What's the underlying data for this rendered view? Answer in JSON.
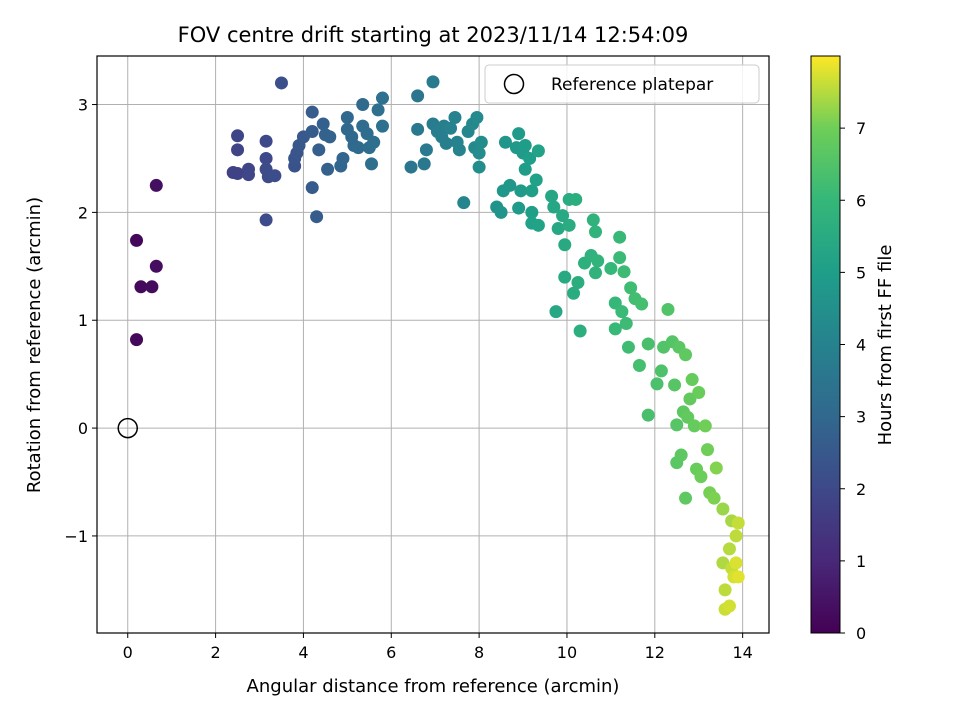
{
  "chart_data": {
    "type": "scatter",
    "title": "FOV centre drift starting at 2023/11/14 12:54:09",
    "xlabel": "Angular distance from reference (arcmin)",
    "ylabel": "Rotation from reference (arcmin)",
    "xlim": [
      -0.7,
      14.6
    ],
    "ylim": [
      -1.9,
      3.45
    ],
    "xticks": [
      0,
      2,
      4,
      6,
      8,
      10,
      12,
      14
    ],
    "yticks": [
      -1,
      0,
      1,
      2,
      3
    ],
    "xtick_labels": [
      "0",
      "2",
      "4",
      "6",
      "8",
      "10",
      "12",
      "14"
    ],
    "ytick_labels": [
      "−1",
      "0",
      "1",
      "2",
      "3"
    ],
    "grid": true,
    "legend": {
      "position": "top-right",
      "entries": [
        "Reference platepar"
      ]
    },
    "reference_point": {
      "x": 0,
      "y": 0,
      "label": "Reference platepar"
    },
    "colorbar": {
      "label": "Hours from first FF file",
      "colormap": "viridis",
      "range": [
        0,
        8
      ],
      "ticks": [
        0,
        1,
        2,
        3,
        4,
        5,
        6,
        7
      ],
      "tick_labels": [
        "0",
        "1",
        "2",
        "3",
        "4",
        "5",
        "6",
        "7"
      ]
    },
    "points": [
      {
        "x": 0.2,
        "y": 0.82,
        "c": 0.2
      },
      {
        "x": 0.3,
        "y": 1.31,
        "c": 0.2
      },
      {
        "x": 0.55,
        "y": 1.31,
        "c": 0.25
      },
      {
        "x": 0.2,
        "y": 1.74,
        "c": 0.15
      },
      {
        "x": 0.65,
        "y": 1.5,
        "c": 0.3
      },
      {
        "x": 0.65,
        "y": 2.25,
        "c": 0.35
      },
      {
        "x": 2.4,
        "y": 2.37,
        "c": 1.8
      },
      {
        "x": 2.5,
        "y": 2.36,
        "c": 1.8
      },
      {
        "x": 2.5,
        "y": 2.58,
        "c": 1.85
      },
      {
        "x": 2.5,
        "y": 2.71,
        "c": 1.9
      },
      {
        "x": 2.75,
        "y": 2.4,
        "c": 1.9
      },
      {
        "x": 2.75,
        "y": 2.35,
        "c": 1.95
      },
      {
        "x": 3.15,
        "y": 2.66,
        "c": 2.0
      },
      {
        "x": 3.15,
        "y": 2.5,
        "c": 2.0
      },
      {
        "x": 3.15,
        "y": 2.4,
        "c": 2.05
      },
      {
        "x": 3.2,
        "y": 2.33,
        "c": 2.05
      },
      {
        "x": 3.35,
        "y": 2.34,
        "c": 2.1
      },
      {
        "x": 3.15,
        "y": 1.93,
        "c": 2.1
      },
      {
        "x": 3.5,
        "y": 3.2,
        "c": 2.2
      },
      {
        "x": 3.8,
        "y": 2.43,
        "c": 2.3
      },
      {
        "x": 3.8,
        "y": 2.5,
        "c": 2.35
      },
      {
        "x": 3.85,
        "y": 2.55,
        "c": 2.4
      },
      {
        "x": 3.9,
        "y": 2.62,
        "c": 2.45
      },
      {
        "x": 4.0,
        "y": 2.7,
        "c": 2.5
      },
      {
        "x": 4.2,
        "y": 2.75,
        "c": 2.6
      },
      {
        "x": 4.2,
        "y": 2.93,
        "c": 2.65
      },
      {
        "x": 4.2,
        "y": 2.23,
        "c": 2.6
      },
      {
        "x": 4.3,
        "y": 1.96,
        "c": 2.6
      },
      {
        "x": 4.35,
        "y": 2.58,
        "c": 2.7
      },
      {
        "x": 4.45,
        "y": 2.82,
        "c": 2.75
      },
      {
        "x": 4.5,
        "y": 2.72,
        "c": 2.8
      },
      {
        "x": 4.6,
        "y": 2.7,
        "c": 2.85
      },
      {
        "x": 4.55,
        "y": 2.4,
        "c": 2.8
      },
      {
        "x": 4.85,
        "y": 2.43,
        "c": 2.9
      },
      {
        "x": 4.9,
        "y": 2.5,
        "c": 2.95
      },
      {
        "x": 5.0,
        "y": 2.88,
        "c": 3.0
      },
      {
        "x": 5.0,
        "y": 2.77,
        "c": 3.0
      },
      {
        "x": 5.1,
        "y": 2.7,
        "c": 3.05
      },
      {
        "x": 5.15,
        "y": 2.62,
        "c": 3.05
      },
      {
        "x": 5.25,
        "y": 2.6,
        "c": 3.1
      },
      {
        "x": 5.35,
        "y": 3.0,
        "c": 3.1
      },
      {
        "x": 5.35,
        "y": 2.8,
        "c": 3.15
      },
      {
        "x": 5.45,
        "y": 2.73,
        "c": 3.2
      },
      {
        "x": 5.5,
        "y": 2.6,
        "c": 3.2
      },
      {
        "x": 5.55,
        "y": 2.45,
        "c": 3.25
      },
      {
        "x": 5.6,
        "y": 2.65,
        "c": 3.25
      },
      {
        "x": 5.7,
        "y": 2.95,
        "c": 3.3
      },
      {
        "x": 5.8,
        "y": 3.06,
        "c": 3.35
      },
      {
        "x": 5.8,
        "y": 2.8,
        "c": 3.35
      },
      {
        "x": 6.45,
        "y": 2.42,
        "c": 3.5
      },
      {
        "x": 6.6,
        "y": 3.08,
        "c": 3.55
      },
      {
        "x": 6.6,
        "y": 2.77,
        "c": 3.6
      },
      {
        "x": 6.8,
        "y": 2.58,
        "c": 3.65
      },
      {
        "x": 6.75,
        "y": 2.45,
        "c": 3.6
      },
      {
        "x": 6.95,
        "y": 3.21,
        "c": 3.7
      },
      {
        "x": 6.95,
        "y": 2.82,
        "c": 3.75
      },
      {
        "x": 7.05,
        "y": 2.75,
        "c": 3.8
      },
      {
        "x": 7.15,
        "y": 2.7,
        "c": 3.85
      },
      {
        "x": 7.2,
        "y": 2.8,
        "c": 3.9
      },
      {
        "x": 7.25,
        "y": 2.64,
        "c": 3.9
      },
      {
        "x": 7.35,
        "y": 2.78,
        "c": 3.95
      },
      {
        "x": 7.45,
        "y": 2.88,
        "c": 4.0
      },
      {
        "x": 7.5,
        "y": 2.65,
        "c": 4.0
      },
      {
        "x": 7.55,
        "y": 2.58,
        "c": 4.05
      },
      {
        "x": 7.65,
        "y": 2.09,
        "c": 4.1
      },
      {
        "x": 7.75,
        "y": 2.75,
        "c": 4.15
      },
      {
        "x": 7.85,
        "y": 2.82,
        "c": 4.2
      },
      {
        "x": 7.9,
        "y": 2.6,
        "c": 4.25
      },
      {
        "x": 7.95,
        "y": 2.88,
        "c": 4.3
      },
      {
        "x": 8.0,
        "y": 2.55,
        "c": 4.35
      },
      {
        "x": 8.0,
        "y": 2.42,
        "c": 4.4
      },
      {
        "x": 8.05,
        "y": 2.65,
        "c": 4.4
      },
      {
        "x": 8.4,
        "y": 2.05,
        "c": 4.6
      },
      {
        "x": 8.5,
        "y": 2.0,
        "c": 4.65
      },
      {
        "x": 8.55,
        "y": 2.2,
        "c": 4.7
      },
      {
        "x": 8.6,
        "y": 2.65,
        "c": 4.7
      },
      {
        "x": 8.7,
        "y": 2.25,
        "c": 4.75
      },
      {
        "x": 8.85,
        "y": 2.6,
        "c": 4.8
      },
      {
        "x": 8.9,
        "y": 2.73,
        "c": 4.85
      },
      {
        "x": 8.9,
        "y": 2.04,
        "c": 4.85
      },
      {
        "x": 8.95,
        "y": 2.2,
        "c": 4.9
      },
      {
        "x": 9.0,
        "y": 2.55,
        "c": 4.9
      },
      {
        "x": 9.05,
        "y": 2.62,
        "c": 4.95
      },
      {
        "x": 9.05,
        "y": 2.4,
        "c": 4.95
      },
      {
        "x": 9.15,
        "y": 2.5,
        "c": 5.0
      },
      {
        "x": 9.2,
        "y": 2.2,
        "c": 5.05
      },
      {
        "x": 9.2,
        "y": 2.0,
        "c": 5.05
      },
      {
        "x": 9.2,
        "y": 1.9,
        "c": 5.1
      },
      {
        "x": 9.3,
        "y": 2.3,
        "c": 5.1
      },
      {
        "x": 9.35,
        "y": 2.57,
        "c": 5.15
      },
      {
        "x": 9.35,
        "y": 1.88,
        "c": 5.15
      },
      {
        "x": 9.65,
        "y": 2.15,
        "c": 5.3
      },
      {
        "x": 9.7,
        "y": 2.05,
        "c": 5.3
      },
      {
        "x": 9.75,
        "y": 1.08,
        "c": 5.35
      },
      {
        "x": 9.8,
        "y": 1.85,
        "c": 5.35
      },
      {
        "x": 9.9,
        "y": 1.97,
        "c": 5.4
      },
      {
        "x": 9.95,
        "y": 1.4,
        "c": 5.45
      },
      {
        "x": 9.95,
        "y": 1.7,
        "c": 5.45
      },
      {
        "x": 10.05,
        "y": 2.12,
        "c": 5.5
      },
      {
        "x": 10.05,
        "y": 1.88,
        "c": 5.5
      },
      {
        "x": 10.15,
        "y": 1.25,
        "c": 5.55
      },
      {
        "x": 10.2,
        "y": 2.12,
        "c": 5.6
      },
      {
        "x": 10.25,
        "y": 1.35,
        "c": 5.6
      },
      {
        "x": 10.3,
        "y": 0.9,
        "c": 5.65
      },
      {
        "x": 10.4,
        "y": 1.53,
        "c": 5.7
      },
      {
        "x": 10.55,
        "y": 1.6,
        "c": 5.75
      },
      {
        "x": 10.6,
        "y": 1.93,
        "c": 5.8
      },
      {
        "x": 10.65,
        "y": 1.44,
        "c": 5.8
      },
      {
        "x": 10.65,
        "y": 1.82,
        "c": 5.85
      },
      {
        "x": 10.7,
        "y": 1.55,
        "c": 5.85
      },
      {
        "x": 11.0,
        "y": 1.48,
        "c": 6.0
      },
      {
        "x": 11.1,
        "y": 1.16,
        "c": 6.0
      },
      {
        "x": 11.1,
        "y": 0.92,
        "c": 6.05
      },
      {
        "x": 11.2,
        "y": 1.77,
        "c": 6.05
      },
      {
        "x": 11.2,
        "y": 1.58,
        "c": 6.1
      },
      {
        "x": 11.25,
        "y": 1.08,
        "c": 6.1
      },
      {
        "x": 11.3,
        "y": 1.45,
        "c": 6.15
      },
      {
        "x": 11.35,
        "y": 0.97,
        "c": 6.15
      },
      {
        "x": 11.4,
        "y": 0.75,
        "c": 6.2
      },
      {
        "x": 11.45,
        "y": 1.3,
        "c": 6.2
      },
      {
        "x": 11.55,
        "y": 1.2,
        "c": 6.25
      },
      {
        "x": 11.65,
        "y": 0.58,
        "c": 6.3
      },
      {
        "x": 11.7,
        "y": 1.15,
        "c": 6.3
      },
      {
        "x": 11.85,
        "y": 0.12,
        "c": 6.35
      },
      {
        "x": 11.85,
        "y": 0.78,
        "c": 6.35
      },
      {
        "x": 12.05,
        "y": 0.41,
        "c": 6.4
      },
      {
        "x": 12.15,
        "y": 0.53,
        "c": 6.45
      },
      {
        "x": 12.2,
        "y": 0.75,
        "c": 6.5
      },
      {
        "x": 12.3,
        "y": 1.1,
        "c": 6.5
      },
      {
        "x": 12.4,
        "y": 0.8,
        "c": 6.55
      },
      {
        "x": 12.45,
        "y": 0.4,
        "c": 6.6
      },
      {
        "x": 12.5,
        "y": 0.03,
        "c": 6.6
      },
      {
        "x": 12.5,
        "y": -0.32,
        "c": 6.65
      },
      {
        "x": 12.55,
        "y": 0.75,
        "c": 6.65
      },
      {
        "x": 12.6,
        "y": -0.25,
        "c": 6.7
      },
      {
        "x": 12.65,
        "y": 0.15,
        "c": 6.7
      },
      {
        "x": 12.7,
        "y": 0.68,
        "c": 6.75
      },
      {
        "x": 12.7,
        "y": -0.65,
        "c": 6.75
      },
      {
        "x": 12.75,
        "y": 0.1,
        "c": 6.8
      },
      {
        "x": 12.8,
        "y": 0.27,
        "c": 6.8
      },
      {
        "x": 12.85,
        "y": 0.45,
        "c": 6.85
      },
      {
        "x": 12.9,
        "y": 0.02,
        "c": 6.85
      },
      {
        "x": 12.95,
        "y": -0.38,
        "c": 6.9
      },
      {
        "x": 13.0,
        "y": 0.33,
        "c": 6.9
      },
      {
        "x": 13.05,
        "y": -0.45,
        "c": 6.95
      },
      {
        "x": 13.15,
        "y": 0.02,
        "c": 7.0
      },
      {
        "x": 13.2,
        "y": -0.2,
        "c": 7.0
      },
      {
        "x": 13.25,
        "y": -0.6,
        "c": 7.05
      },
      {
        "x": 13.35,
        "y": -0.65,
        "c": 7.1
      },
      {
        "x": 13.4,
        "y": -0.37,
        "c": 7.15
      },
      {
        "x": 13.55,
        "y": -0.75,
        "c": 7.3
      },
      {
        "x": 13.55,
        "y": -1.25,
        "c": 7.45
      },
      {
        "x": 13.6,
        "y": -1.5,
        "c": 7.55
      },
      {
        "x": 13.6,
        "y": -1.68,
        "c": 7.65
      },
      {
        "x": 13.7,
        "y": -1.65,
        "c": 7.7
      },
      {
        "x": 13.7,
        "y": -1.12,
        "c": 7.5
      },
      {
        "x": 13.75,
        "y": -0.86,
        "c": 7.4
      },
      {
        "x": 13.75,
        "y": -1.3,
        "c": 7.6
      },
      {
        "x": 13.8,
        "y": -1.38,
        "c": 7.7
      },
      {
        "x": 13.85,
        "y": -1.0,
        "c": 7.55
      },
      {
        "x": 13.85,
        "y": -1.25,
        "c": 7.75
      },
      {
        "x": 13.9,
        "y": -0.88,
        "c": 7.6
      },
      {
        "x": 13.9,
        "y": -1.38,
        "c": 7.8
      }
    ]
  }
}
